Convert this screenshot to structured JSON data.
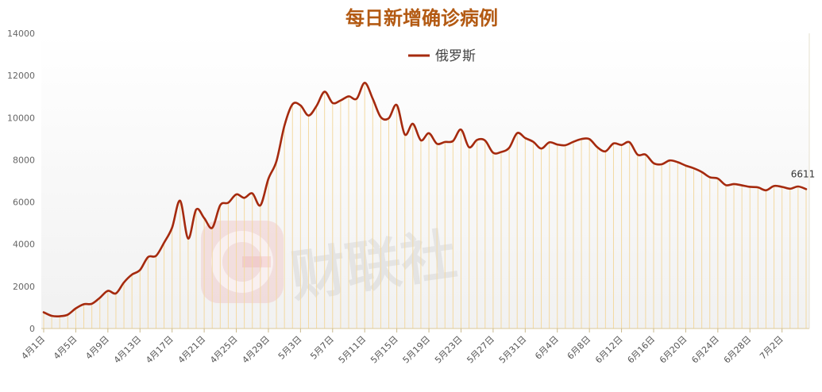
{
  "chart_data": {
    "type": "line",
    "title": "每日新增确诊病例",
    "legend": {
      "position": "top-center",
      "entries": [
        "俄罗斯"
      ]
    },
    "ylim": [
      0,
      14000
    ],
    "yticks": [
      0,
      2000,
      4000,
      6000,
      8000,
      10000,
      12000,
      14000
    ],
    "xticks": [
      "4月1日",
      "4月5日",
      "4月9日",
      "4月13日",
      "4月17日",
      "4月21日",
      "4月25日",
      "4月29日",
      "5月3日",
      "5月7日",
      "5月11日",
      "5月15日",
      "5月19日",
      "5月23日",
      "5月27日",
      "5月31日",
      "6月4日",
      "6月8日",
      "6月12日",
      "6月16日",
      "6月20日",
      "6月24日",
      "6月28日",
      "7月2日"
    ],
    "tick_step_days": 4,
    "grid": false,
    "series": [
      {
        "name": "俄罗斯",
        "color": "#a52a0e",
        "values": [
          771,
          601,
          582,
          658,
          954,
          1154,
          1175,
          1459,
          1786,
          1667,
          2186,
          2558,
          2774,
          3388,
          3448,
          4070,
          4785,
          6060,
          4268,
          5642,
          5236,
          4774,
          5849,
          5966,
          6361,
          6198,
          6411,
          5841,
          7099,
          7933,
          9623,
          10633,
          10581,
          10102,
          10559,
          11231,
          10699,
          10817,
          11012,
          10899,
          11656,
          10899,
          10028,
          9974,
          10598,
          9200,
          9709,
          8926,
          9263,
          8764,
          8849,
          8894,
          9434,
          8599,
          8946,
          8915,
          8338,
          8371,
          8572,
          9268,
          9035,
          8855,
          8536,
          8831,
          8726,
          8694,
          8855,
          8985,
          8984,
          8595,
          8404,
          8779,
          8706,
          8835,
          8246,
          8248,
          7843,
          7790,
          7972,
          7889,
          7728,
          7600,
          7425,
          7176,
          7113,
          6800,
          6852,
          6791,
          6719,
          6693,
          6556,
          6760,
          6718,
          6632,
          6736,
          6611
        ],
        "end_label": "6611"
      }
    ],
    "fill_lines_color": "#f3d9a2",
    "watermark": {
      "icon": "cls-logo-icon",
      "text": "财联社"
    }
  }
}
